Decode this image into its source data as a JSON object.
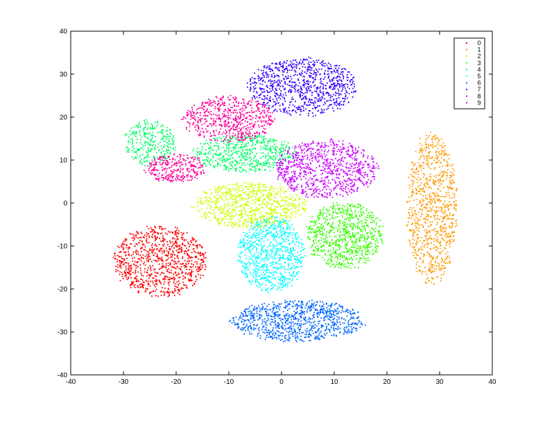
{
  "chart_data": {
    "type": "scatter",
    "title": "",
    "xlabel": "",
    "ylabel": "",
    "xlim": [
      -40,
      40
    ],
    "ylim": [
      -40,
      40
    ],
    "x_ticks": [
      -40,
      -30,
      -20,
      -10,
      0,
      10,
      20,
      30,
      40
    ],
    "y_ticks": [
      -40,
      -30,
      -20,
      -10,
      0,
      10,
      20,
      30,
      40
    ],
    "grid": false,
    "legend_position": "top-right",
    "series": [
      {
        "name": "0",
        "color": "#ff0000",
        "cx": -23,
        "cy": -13.5,
        "rx": 9,
        "ry": 8.5,
        "n": 900
      },
      {
        "name": "1",
        "color": "#ff9900",
        "cx": 28.5,
        "cy": -1,
        "rx": 5,
        "ry": 18,
        "n": 900
      },
      {
        "name": "2",
        "color": "#ccff00",
        "cx": -6,
        "cy": -0.5,
        "rx": 11,
        "ry": 5.5,
        "n": 800
      },
      {
        "name": "3",
        "color": "#33ff00",
        "cx": 12,
        "cy": -7.5,
        "rx": 7.5,
        "ry": 8,
        "n": 800
      },
      {
        "name": "4",
        "color": "#00ff66",
        "cx": -7,
        "cy": 11.5,
        "rx": 10,
        "ry": 4.5,
        "n": 600
      },
      {
        "name": "4",
        "color": "#00ff66",
        "cx": -25,
        "cy": 14,
        "rx": 5,
        "ry": 5.5,
        "n": 300
      },
      {
        "name": "5",
        "color": "#00ffff",
        "cx": -2,
        "cy": -12,
        "rx": 6.5,
        "ry": 9,
        "n": 800
      },
      {
        "name": "6",
        "color": "#0066ff",
        "cx": 3,
        "cy": -27.5,
        "rx": 13,
        "ry": 5,
        "n": 900
      },
      {
        "name": "7",
        "color": "#3300ff",
        "cx": 4,
        "cy": 27,
        "rx": 10.5,
        "ry": 7,
        "n": 900
      },
      {
        "name": "8",
        "color": "#cc00ff",
        "cx": 8.5,
        "cy": 8,
        "rx": 10,
        "ry": 7,
        "n": 850
      },
      {
        "name": "9",
        "color": "#ff0099",
        "cx": -10,
        "cy": 19.5,
        "rx": 9,
        "ry": 5.5,
        "n": 600
      },
      {
        "name": "9",
        "color": "#ff0099",
        "cx": -20,
        "cy": 8,
        "rx": 6,
        "ry": 3.5,
        "n": 300
      }
    ],
    "legend": [
      {
        "label": "0",
        "color": "#ff0000"
      },
      {
        "label": "1",
        "color": "#ff9900"
      },
      {
        "label": "2",
        "color": "#ccff00"
      },
      {
        "label": "3",
        "color": "#33ff00"
      },
      {
        "label": "4",
        "color": "#00ff66"
      },
      {
        "label": "5",
        "color": "#00ffff"
      },
      {
        "label": "6",
        "color": "#0066ff"
      },
      {
        "label": "7",
        "color": "#3300ff"
      },
      {
        "label": "8",
        "color": "#cc00ff"
      },
      {
        "label": "9",
        "color": "#ff0099"
      }
    ]
  }
}
